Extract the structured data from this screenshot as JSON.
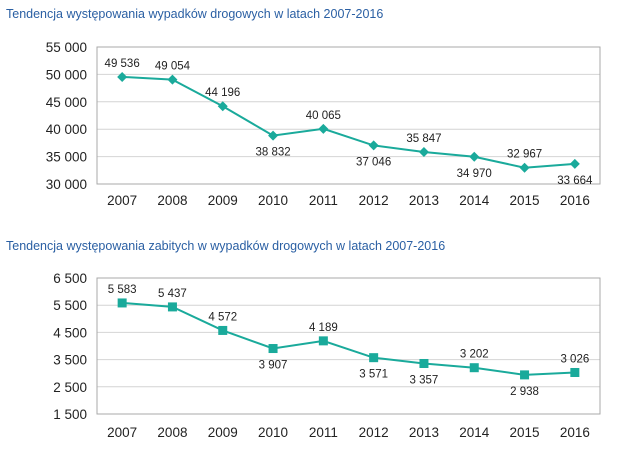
{
  "chart_data": [
    {
      "type": "line",
      "title": "Tendencja występowania wypadków drogowych w latach 2007-2016",
      "categories": [
        "2007",
        "2008",
        "2009",
        "2010",
        "2011",
        "2012",
        "2013",
        "2014",
        "2015",
        "2016"
      ],
      "values": [
        49536,
        49054,
        44196,
        38832,
        40065,
        37046,
        35847,
        34970,
        32967,
        33664
      ],
      "value_labels": [
        "49 536",
        "49 054",
        "44 196",
        "38 832",
        "40 065",
        "37 046",
        "35 847",
        "34 970",
        "32 967",
        "33 664"
      ],
      "label_positions": [
        "above",
        "above",
        "above",
        "below",
        "above",
        "below",
        "above",
        "below",
        "above",
        "below"
      ],
      "ylim": [
        30000,
        55000
      ],
      "yticks": [
        "30 000",
        "35 000",
        "40 000",
        "45 000",
        "50 000",
        "55 000"
      ],
      "ytick_values": [
        30000,
        35000,
        40000,
        45000,
        50000,
        55000
      ],
      "marker": "diamond",
      "color": "#1aaa9b"
    },
    {
      "type": "line",
      "title": "Tendencja występowania zabitych w wypadków drogowych w latach 2007-2016",
      "categories": [
        "2007",
        "2008",
        "2009",
        "2010",
        "2011",
        "2012",
        "2013",
        "2014",
        "2015",
        "2016"
      ],
      "values": [
        5583,
        5437,
        4572,
        3907,
        4189,
        3571,
        3357,
        3202,
        2938,
        3026
      ],
      "value_labels": [
        "5 583",
        "5 437",
        "4 572",
        "3 907",
        "4 189",
        "3 571",
        "3 357",
        "3 202",
        "2 938",
        "3 026"
      ],
      "label_positions": [
        "above",
        "above",
        "above",
        "below",
        "above",
        "below",
        "below",
        "above",
        "below",
        "above"
      ],
      "ylim": [
        1500,
        6500
      ],
      "yticks": [
        "1 500",
        "2 500",
        "3 500",
        "4 500",
        "5 500",
        "6 500"
      ],
      "ytick_values": [
        1500,
        2500,
        3500,
        4500,
        5500,
        6500
      ],
      "marker": "square",
      "color": "#1aaa9b"
    }
  ],
  "colors": {
    "title": "#2a5fa3",
    "line": "#1aaa9b",
    "grid": "#d4d4d4",
    "frame": "#a9a9a9"
  }
}
